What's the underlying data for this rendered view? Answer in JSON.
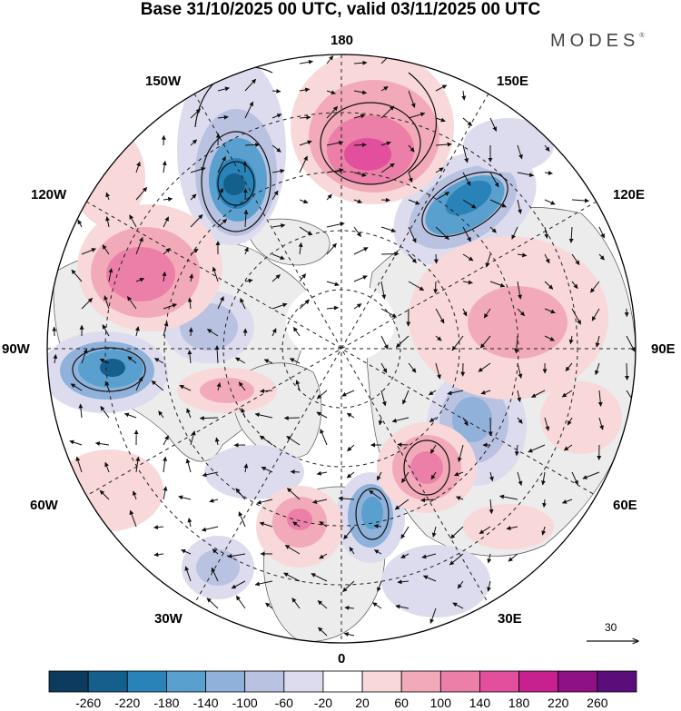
{
  "header": {
    "title": "Base 31/10/2025 00 UTC, valid 03/11/2025 00 UTC",
    "brand": "MODES",
    "brand_mark": "®"
  },
  "longitude_labels": {
    "top": "180",
    "top_left": "150W",
    "top_right": "150E",
    "upper_left": "120W",
    "upper_right": "120E",
    "left": "90W",
    "right": "90E",
    "lower_left": "60W",
    "lower_right": "60E",
    "bottom_left": "30W",
    "bottom_right": "30E",
    "bottom": "0"
  },
  "vector_reference": {
    "label": "30"
  },
  "colorbar": {
    "ticks": [
      "-260",
      "-220",
      "-180",
      "-140",
      "-100",
      "-60",
      "-20",
      "20",
      "60",
      "100",
      "140",
      "180",
      "220",
      "260"
    ],
    "colors": [
      "#0d3b5e",
      "#155f8c",
      "#2a83b8",
      "#5aa0cf",
      "#8fb1da",
      "#b9c2e0",
      "#dcdcee",
      "#ffffff",
      "#f8d8d8",
      "#f2aab9",
      "#ec7fa8",
      "#e24f9c",
      "#c7208f",
      "#8e1186",
      "#5b0e7a"
    ]
  }
}
